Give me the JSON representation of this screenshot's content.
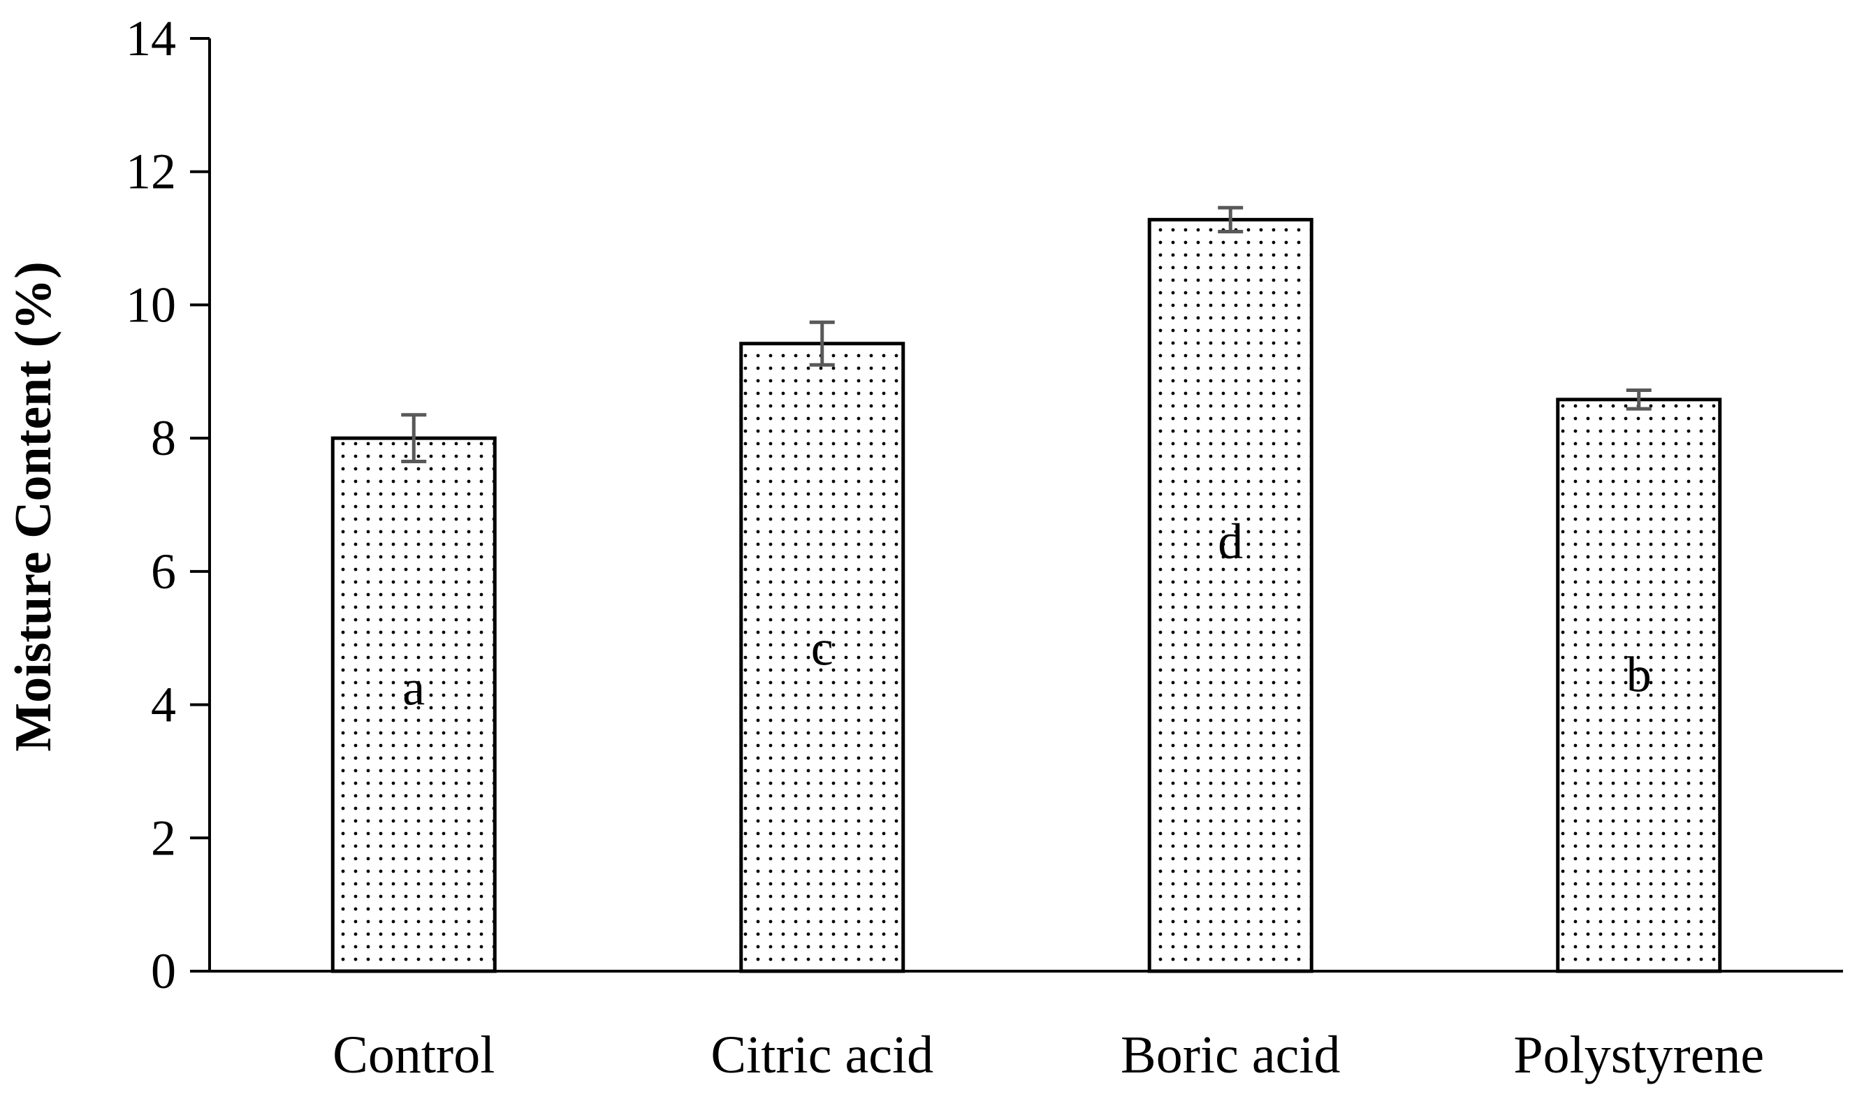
{
  "chart_data": {
    "type": "bar",
    "title": "",
    "xlabel": "",
    "ylabel": "Moisture Content (%)",
    "ylim": [
      0,
      14
    ],
    "yticks": [
      0,
      2,
      4,
      6,
      8,
      10,
      12,
      14
    ],
    "grid": false,
    "legend": "none",
    "categories": [
      "Control",
      "Citric acid",
      "Boric acid",
      "Polystyrene"
    ],
    "values": [
      8.0,
      9.42,
      11.28,
      8.58
    ],
    "errors": [
      0.35,
      0.32,
      0.18,
      0.14
    ],
    "significance_letters": [
      "a",
      "c",
      "d",
      "b"
    ],
    "letter_positions": [
      4.0,
      4.6,
      6.2,
      4.2
    ],
    "bar_fill": "dotted",
    "colors": {
      "bar_outline": "#000000",
      "dots": "#000000",
      "error_bar": "#595959",
      "axis": "#000000"
    }
  }
}
